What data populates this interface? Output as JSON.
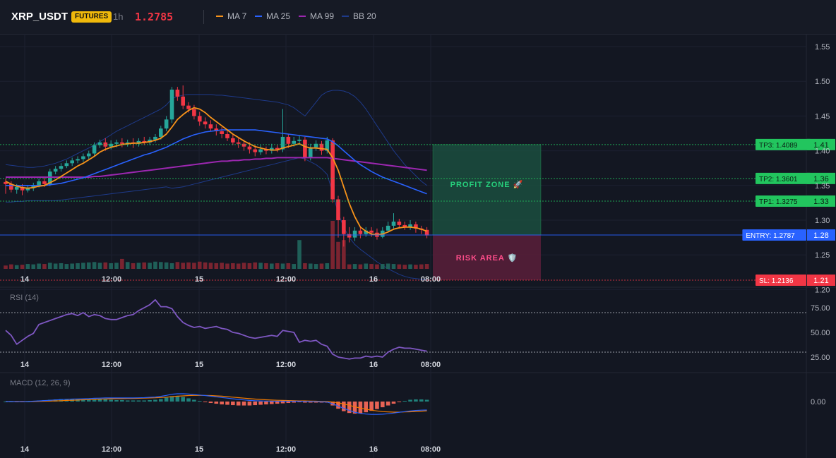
{
  "header": {
    "symbol": "XRP_USDT",
    "badge": "FUTURES",
    "timeframe": "1h",
    "price": "1.2785",
    "legend": [
      {
        "label": "MA 7",
        "color": "#f7931a"
      },
      {
        "label": "MA 25",
        "color": "#2962ff"
      },
      {
        "label": "MA 99",
        "color": "#9c27b0"
      },
      {
        "label": "BB 20",
        "color": "#1e3a8a"
      }
    ]
  },
  "colors": {
    "up": "#26a69a",
    "down": "#f23645",
    "bg": "#131722",
    "ma7": "#f7931a",
    "ma25": "#2962ff",
    "ma99": "#9c27b0",
    "bb": "#1e3a8a",
    "rsi": "#7e57c2",
    "macd": "#2962ff",
    "signal": "#f57c00"
  },
  "chart_data": [
    {
      "type": "candlestick",
      "y_axis_ticks": [
        "1.55",
        "1.50",
        "1.45",
        "1.40",
        "1.35",
        "1.30",
        "1.25",
        "1.20"
      ],
      "x_ticks": [
        "14",
        "12:00",
        "15",
        "12:00",
        "16",
        "08:00"
      ],
      "ylim": [
        1.195,
        1.565
      ],
      "candles": [
        [
          1.355,
          1.352,
          1.36,
          1.338
        ],
        [
          1.352,
          1.344,
          1.356,
          1.34
        ],
        [
          1.344,
          1.348,
          1.352,
          1.338
        ],
        [
          1.348,
          1.343,
          1.352,
          1.336
        ],
        [
          1.343,
          1.346,
          1.35,
          1.34
        ],
        [
          1.346,
          1.35,
          1.354,
          1.342
        ],
        [
          1.35,
          1.356,
          1.36,
          1.347
        ],
        [
          1.356,
          1.352,
          1.362,
          1.348
        ],
        [
          1.352,
          1.37,
          1.374,
          1.349
        ],
        [
          1.37,
          1.374,
          1.378,
          1.366
        ],
        [
          1.374,
          1.378,
          1.382,
          1.37
        ],
        [
          1.378,
          1.382,
          1.386,
          1.375
        ],
        [
          1.382,
          1.386,
          1.39,
          1.378
        ],
        [
          1.386,
          1.388,
          1.392,
          1.382
        ],
        [
          1.388,
          1.392,
          1.396,
          1.384
        ],
        [
          1.392,
          1.396,
          1.4,
          1.388
        ],
        [
          1.396,
          1.408,
          1.412,
          1.392
        ],
        [
          1.408,
          1.412,
          1.416,
          1.404
        ],
        [
          1.412,
          1.406,
          1.418,
          1.4
        ],
        [
          1.406,
          1.41,
          1.415,
          1.402
        ],
        [
          1.41,
          1.412,
          1.416,
          1.405
        ],
        [
          1.412,
          1.41,
          1.418,
          1.405
        ],
        [
          1.41,
          1.412,
          1.416,
          1.406
        ],
        [
          1.412,
          1.41,
          1.418,
          1.404
        ],
        [
          1.41,
          1.414,
          1.418,
          1.406
        ],
        [
          1.414,
          1.412,
          1.42,
          1.408
        ],
        [
          1.412,
          1.416,
          1.42,
          1.408
        ],
        [
          1.416,
          1.42,
          1.424,
          1.412
        ],
        [
          1.42,
          1.432,
          1.436,
          1.416
        ],
        [
          1.432,
          1.445,
          1.45,
          1.428
        ],
        [
          1.445,
          1.488,
          1.492,
          1.44
        ],
        [
          1.488,
          1.478,
          1.492,
          1.472
        ],
        [
          1.478,
          1.465,
          1.494,
          1.46
        ],
        [
          1.465,
          1.46,
          1.47,
          1.455
        ],
        [
          1.46,
          1.45,
          1.466,
          1.445
        ],
        [
          1.45,
          1.442,
          1.456,
          1.436
        ],
        [
          1.442,
          1.438,
          1.448,
          1.432
        ],
        [
          1.438,
          1.432,
          1.444,
          1.428
        ],
        [
          1.432,
          1.428,
          1.438,
          1.422
        ],
        [
          1.428,
          1.424,
          1.434,
          1.418
        ],
        [
          1.424,
          1.418,
          1.43,
          1.414
        ],
        [
          1.418,
          1.412,
          1.424,
          1.408
        ],
        [
          1.412,
          1.41,
          1.418,
          1.404
        ],
        [
          1.41,
          1.406,
          1.416,
          1.4
        ],
        [
          1.406,
          1.402,
          1.412,
          1.396
        ],
        [
          1.402,
          1.398,
          1.408,
          1.392
        ],
        [
          1.398,
          1.402,
          1.408,
          1.394
        ],
        [
          1.402,
          1.4,
          1.406,
          1.395
        ],
        [
          1.4,
          1.404,
          1.41,
          1.396
        ],
        [
          1.404,
          1.402,
          1.408,
          1.398
        ],
        [
          1.402,
          1.42,
          1.46,
          1.398
        ],
        [
          1.42,
          1.41,
          1.424,
          1.404
        ],
        [
          1.41,
          1.414,
          1.42,
          1.406
        ],
        [
          1.414,
          1.416,
          1.422,
          1.41
        ],
        [
          1.416,
          1.39,
          1.42,
          1.385
        ],
        [
          1.39,
          1.405,
          1.41,
          1.386
        ],
        [
          1.405,
          1.41,
          1.415,
          1.4
        ],
        [
          1.41,
          1.4,
          1.414,
          1.394
        ],
        [
          1.4,
          1.415,
          1.42,
          1.396
        ],
        [
          1.415,
          1.33,
          1.418,
          1.325
        ],
        [
          1.33,
          1.3,
          1.335,
          1.275
        ],
        [
          1.3,
          1.28,
          1.305,
          1.262
        ],
        [
          1.28,
          1.275,
          1.29,
          1.268
        ],
        [
          1.275,
          1.285,
          1.29,
          1.27
        ],
        [
          1.285,
          1.28,
          1.29,
          1.274
        ],
        [
          1.28,
          1.285,
          1.29,
          1.276
        ],
        [
          1.285,
          1.282,
          1.29,
          1.276
        ],
        [
          1.282,
          1.276,
          1.288,
          1.272
        ],
        [
          1.276,
          1.285,
          1.29,
          1.274
        ],
        [
          1.285,
          1.292,
          1.298,
          1.282
        ],
        [
          1.292,
          1.298,
          1.31,
          1.288
        ],
        [
          1.298,
          1.293,
          1.302,
          1.288
        ],
        [
          1.293,
          1.29,
          1.298,
          1.286
        ],
        [
          1.29,
          1.294,
          1.3,
          1.286
        ],
        [
          1.294,
          1.288,
          1.298,
          1.282
        ],
        [
          1.288,
          1.286,
          1.292,
          1.28
        ],
        [
          1.286,
          1.278,
          1.29,
          1.274
        ]
      ],
      "ma7": [
        1.356,
        1.352,
        1.349,
        1.347,
        1.346,
        1.347,
        1.349,
        1.35,
        1.354,
        1.358,
        1.363,
        1.368,
        1.373,
        1.378,
        1.382,
        1.387,
        1.392,
        1.398,
        1.402,
        1.405,
        1.407,
        1.409,
        1.41,
        1.411,
        1.411,
        1.412,
        1.413,
        1.415,
        1.418,
        1.424,
        1.434,
        1.445,
        1.452,
        1.458,
        1.462,
        1.46,
        1.455,
        1.448,
        1.442,
        1.436,
        1.43,
        1.424,
        1.419,
        1.414,
        1.41,
        1.406,
        1.404,
        1.402,
        1.401,
        1.401,
        1.404,
        1.406,
        1.408,
        1.41,
        1.406,
        1.404,
        1.404,
        1.403,
        1.402,
        1.39,
        1.372,
        1.348,
        1.324,
        1.305,
        1.29,
        1.284,
        1.28,
        1.279,
        1.28,
        1.283,
        1.287,
        1.289,
        1.29,
        1.29,
        1.289,
        1.287,
        1.284
      ],
      "ma25": [
        1.35,
        1.35,
        1.35,
        1.35,
        1.35,
        1.35,
        1.35,
        1.35,
        1.351,
        1.352,
        1.353,
        1.355,
        1.357,
        1.359,
        1.361,
        1.364,
        1.367,
        1.37,
        1.373,
        1.376,
        1.379,
        1.382,
        1.385,
        1.388,
        1.391,
        1.394,
        1.396,
        1.399,
        1.402,
        1.405,
        1.409,
        1.413,
        1.417,
        1.42,
        1.423,
        1.425,
        1.427,
        1.428,
        1.429,
        1.43,
        1.43,
        1.43,
        1.43,
        1.43,
        1.43,
        1.43,
        1.429,
        1.428,
        1.427,
        1.426,
        1.425,
        1.424,
        1.423,
        1.422,
        1.421,
        1.42,
        1.419,
        1.418,
        1.417,
        1.413,
        1.407,
        1.4,
        1.393,
        1.386,
        1.38,
        1.375,
        1.37,
        1.366,
        1.362,
        1.359,
        1.356,
        1.353,
        1.35,
        1.347,
        1.344,
        1.341,
        1.338
      ],
      "ma99": [
        1.362,
        1.362,
        1.362,
        1.362,
        1.362,
        1.362,
        1.362,
        1.362,
        1.362,
        1.362,
        1.362,
        1.362,
        1.362,
        1.362,
        1.362,
        1.362,
        1.363,
        1.363,
        1.364,
        1.365,
        1.366,
        1.367,
        1.368,
        1.369,
        1.37,
        1.371,
        1.372,
        1.373,
        1.374,
        1.375,
        1.376,
        1.377,
        1.378,
        1.379,
        1.38,
        1.381,
        1.382,
        1.383,
        1.384,
        1.385,
        1.385,
        1.386,
        1.386,
        1.387,
        1.387,
        1.388,
        1.388,
        1.389,
        1.389,
        1.39,
        1.39,
        1.39,
        1.39,
        1.39,
        1.39,
        1.39,
        1.39,
        1.39,
        1.39,
        1.389,
        1.388,
        1.387,
        1.386,
        1.385,
        1.384,
        1.383,
        1.382,
        1.381,
        1.38,
        1.379,
        1.378,
        1.377,
        1.376,
        1.375,
        1.374,
        1.373,
        1.372
      ],
      "bb_upper": [
        1.38,
        1.379,
        1.378,
        1.377,
        1.376,
        1.376,
        1.377,
        1.378,
        1.38,
        1.382,
        1.385,
        1.388,
        1.392,
        1.396,
        1.4,
        1.404,
        1.408,
        1.413,
        1.418,
        1.423,
        1.428,
        1.432,
        1.436,
        1.44,
        1.444,
        1.448,
        1.452,
        1.456,
        1.46,
        1.466,
        1.475,
        1.478,
        1.48,
        1.481,
        1.481,
        1.481,
        1.481,
        1.481,
        1.48,
        1.48,
        1.479,
        1.478,
        1.477,
        1.476,
        1.475,
        1.474,
        1.473,
        1.472,
        1.471,
        1.47,
        1.468,
        1.466,
        1.462,
        1.456,
        1.45,
        1.46,
        1.47,
        1.48,
        1.485,
        1.487,
        1.487,
        1.486,
        1.483,
        1.478,
        1.47,
        1.46,
        1.448,
        1.436,
        1.424,
        1.412,
        1.4,
        1.39,
        1.38,
        1.372,
        1.364,
        1.356,
        1.35
      ],
      "bb_lower": [
        1.326,
        1.326,
        1.327,
        1.327,
        1.328,
        1.328,
        1.328,
        1.328,
        1.328,
        1.328,
        1.329,
        1.33,
        1.331,
        1.332,
        1.333,
        1.334,
        1.335,
        1.336,
        1.337,
        1.338,
        1.339,
        1.34,
        1.341,
        1.342,
        1.343,
        1.344,
        1.345,
        1.346,
        1.347,
        1.348,
        1.346,
        1.347,
        1.348,
        1.35,
        1.352,
        1.354,
        1.356,
        1.358,
        1.36,
        1.362,
        1.364,
        1.366,
        1.368,
        1.37,
        1.372,
        1.374,
        1.376,
        1.378,
        1.38,
        1.382,
        1.384,
        1.386,
        1.388,
        1.39,
        1.388,
        1.384,
        1.38,
        1.374,
        1.366,
        1.34,
        1.31,
        1.29,
        1.275,
        1.265,
        1.258,
        1.252,
        1.246,
        1.24,
        1.235,
        1.23,
        1.226,
        1.222,
        1.219,
        1.217,
        1.216,
        1.215,
        1.215
      ],
      "volume": [
        5,
        8,
        6,
        7,
        9,
        8,
        10,
        9,
        12,
        10,
        11,
        9,
        10,
        11,
        12,
        13,
        14,
        12,
        13,
        11,
        12,
        22,
        14,
        11,
        12,
        13,
        12,
        15,
        14,
        13,
        11,
        14,
        12,
        13,
        12,
        15,
        13,
        12,
        11,
        12,
        10,
        11,
        10,
        12,
        11,
        13,
        12,
        11,
        10,
        11,
        10,
        11,
        9,
        12,
        11,
        10,
        9,
        10,
        11,
        28,
        25,
        18,
        8,
        9,
        8,
        10,
        9,
        8,
        9,
        10,
        9,
        8,
        7,
        8,
        7,
        8,
        9
      ],
      "volume_spikes": {
        "59": 80,
        "60": 45,
        "61": 48,
        "53": 48
      },
      "levels": [
        {
          "label": "TP3: 1.4089",
          "value": "1.41",
          "price": 1.4089,
          "color": "#22c55e"
        },
        {
          "label": "TP2: 1.3601",
          "value": "1.36",
          "price": 1.3601,
          "color": "#22c55e"
        },
        {
          "label": "TP1: 1.3275",
          "value": "1.33",
          "price": 1.3275,
          "color": "#22c55e"
        },
        {
          "label": "ENTRY: 1.2787",
          "value": "1.28",
          "price": 1.2787,
          "color": "#2962ff"
        },
        {
          "label": "SL: 1.2136",
          "value": "1.21",
          "price": 1.2136,
          "color": "#f23645"
        }
      ],
      "zones": {
        "profit_label": "PROFIT ZONE 🚀",
        "risk_label": "RISK AREA 🛡️"
      }
    },
    {
      "type": "line",
      "title": "RSI (14)",
      "ylim": [
        15,
        95
      ],
      "y_ticks": [
        "75.00",
        "50.00",
        "25.00"
      ],
      "levels": [
        70,
        30
      ],
      "x_ticks": [
        "14",
        "12:00",
        "15",
        "12:00",
        "16",
        "08:00"
      ],
      "values": [
        52,
        47,
        38,
        42,
        46,
        49,
        58,
        60,
        62,
        64,
        66,
        68,
        69,
        67,
        70,
        66,
        68,
        67,
        64,
        63,
        63,
        65,
        67,
        68,
        72,
        75,
        78,
        83,
        76,
        76,
        74,
        66,
        60,
        57,
        55,
        56,
        54,
        55,
        56,
        54,
        53,
        50,
        49,
        47,
        45,
        44,
        45,
        46,
        47,
        46,
        52,
        51,
        50,
        40,
        42,
        41,
        42,
        38,
        36,
        28,
        25,
        24,
        23,
        24,
        24,
        26,
        25,
        26,
        25,
        30,
        33,
        35,
        34,
        34,
        33,
        32,
        31
      ]
    },
    {
      "type": "line",
      "title": "MACD (12, 26, 9)",
      "y_ticks": [
        "0.00"
      ],
      "ylim": [
        -0.012,
        0.006
      ],
      "x_ticks": [
        "14",
        "12:00",
        "15",
        "12:00",
        "16",
        "08:00"
      ],
      "macd": [
        0.0,
        0.0,
        -0.0001,
        -0.0001,
        0.0,
        0.0002,
        0.0004,
        0.0006,
        0.0008,
        0.001,
        0.0012,
        0.0014,
        0.0015,
        0.0016,
        0.0017,
        0.0018,
        0.002,
        0.0021,
        0.0022,
        0.0022,
        0.0022,
        0.0022,
        0.0022,
        0.0022,
        0.0023,
        0.0024,
        0.0026,
        0.0028,
        0.0032,
        0.0038,
        0.0045,
        0.0048,
        0.0048,
        0.0046,
        0.0043,
        0.004,
        0.0037,
        0.0033,
        0.0029,
        0.0025,
        0.0021,
        0.0017,
        0.0013,
        0.001,
        0.0007,
        0.0005,
        0.0004,
        0.0003,
        0.0002,
        0.0002,
        0.0002,
        0.0002,
        0.0002,
        0.0002,
        0.0001,
        0.0,
        -0.0001,
        -0.0002,
        -0.0003,
        -0.0014,
        -0.0028,
        -0.0042,
        -0.0055,
        -0.0066,
        -0.0073,
        -0.0077,
        -0.0079,
        -0.0079,
        -0.0078,
        -0.0075,
        -0.0071,
        -0.0066,
        -0.0062,
        -0.0058,
        -0.0055,
        -0.0053,
        -0.0052
      ],
      "signal": [
        0.0,
        0.0,
        0.0,
        0.0,
        0.0,
        0.0,
        0.0001,
        0.0002,
        0.0003,
        0.0004,
        0.0005,
        0.0007,
        0.0008,
        0.0009,
        0.0011,
        0.0012,
        0.0013,
        0.0015,
        0.0016,
        0.0017,
        0.0018,
        0.0018,
        0.0019,
        0.0019,
        0.002,
        0.0021,
        0.0022,
        0.0023,
        0.0025,
        0.0027,
        0.003,
        0.0033,
        0.0035,
        0.0037,
        0.0038,
        0.0038,
        0.0038,
        0.0037,
        0.0035,
        0.0033,
        0.003,
        0.0027,
        0.0024,
        0.0021,
        0.0018,
        0.0015,
        0.0013,
        0.0011,
        0.0009,
        0.0008,
        0.0007,
        0.0006,
        0.0005,
        0.0004,
        0.0004,
        0.0003,
        0.0002,
        0.0001,
        0.0,
        -0.0003,
        -0.0008,
        -0.0015,
        -0.0023,
        -0.0032,
        -0.004,
        -0.0047,
        -0.0053,
        -0.0058,
        -0.0062,
        -0.0064,
        -0.0065,
        -0.0065,
        -0.0064,
        -0.0063,
        -0.0061,
        -0.0059,
        -0.0057
      ]
    }
  ]
}
